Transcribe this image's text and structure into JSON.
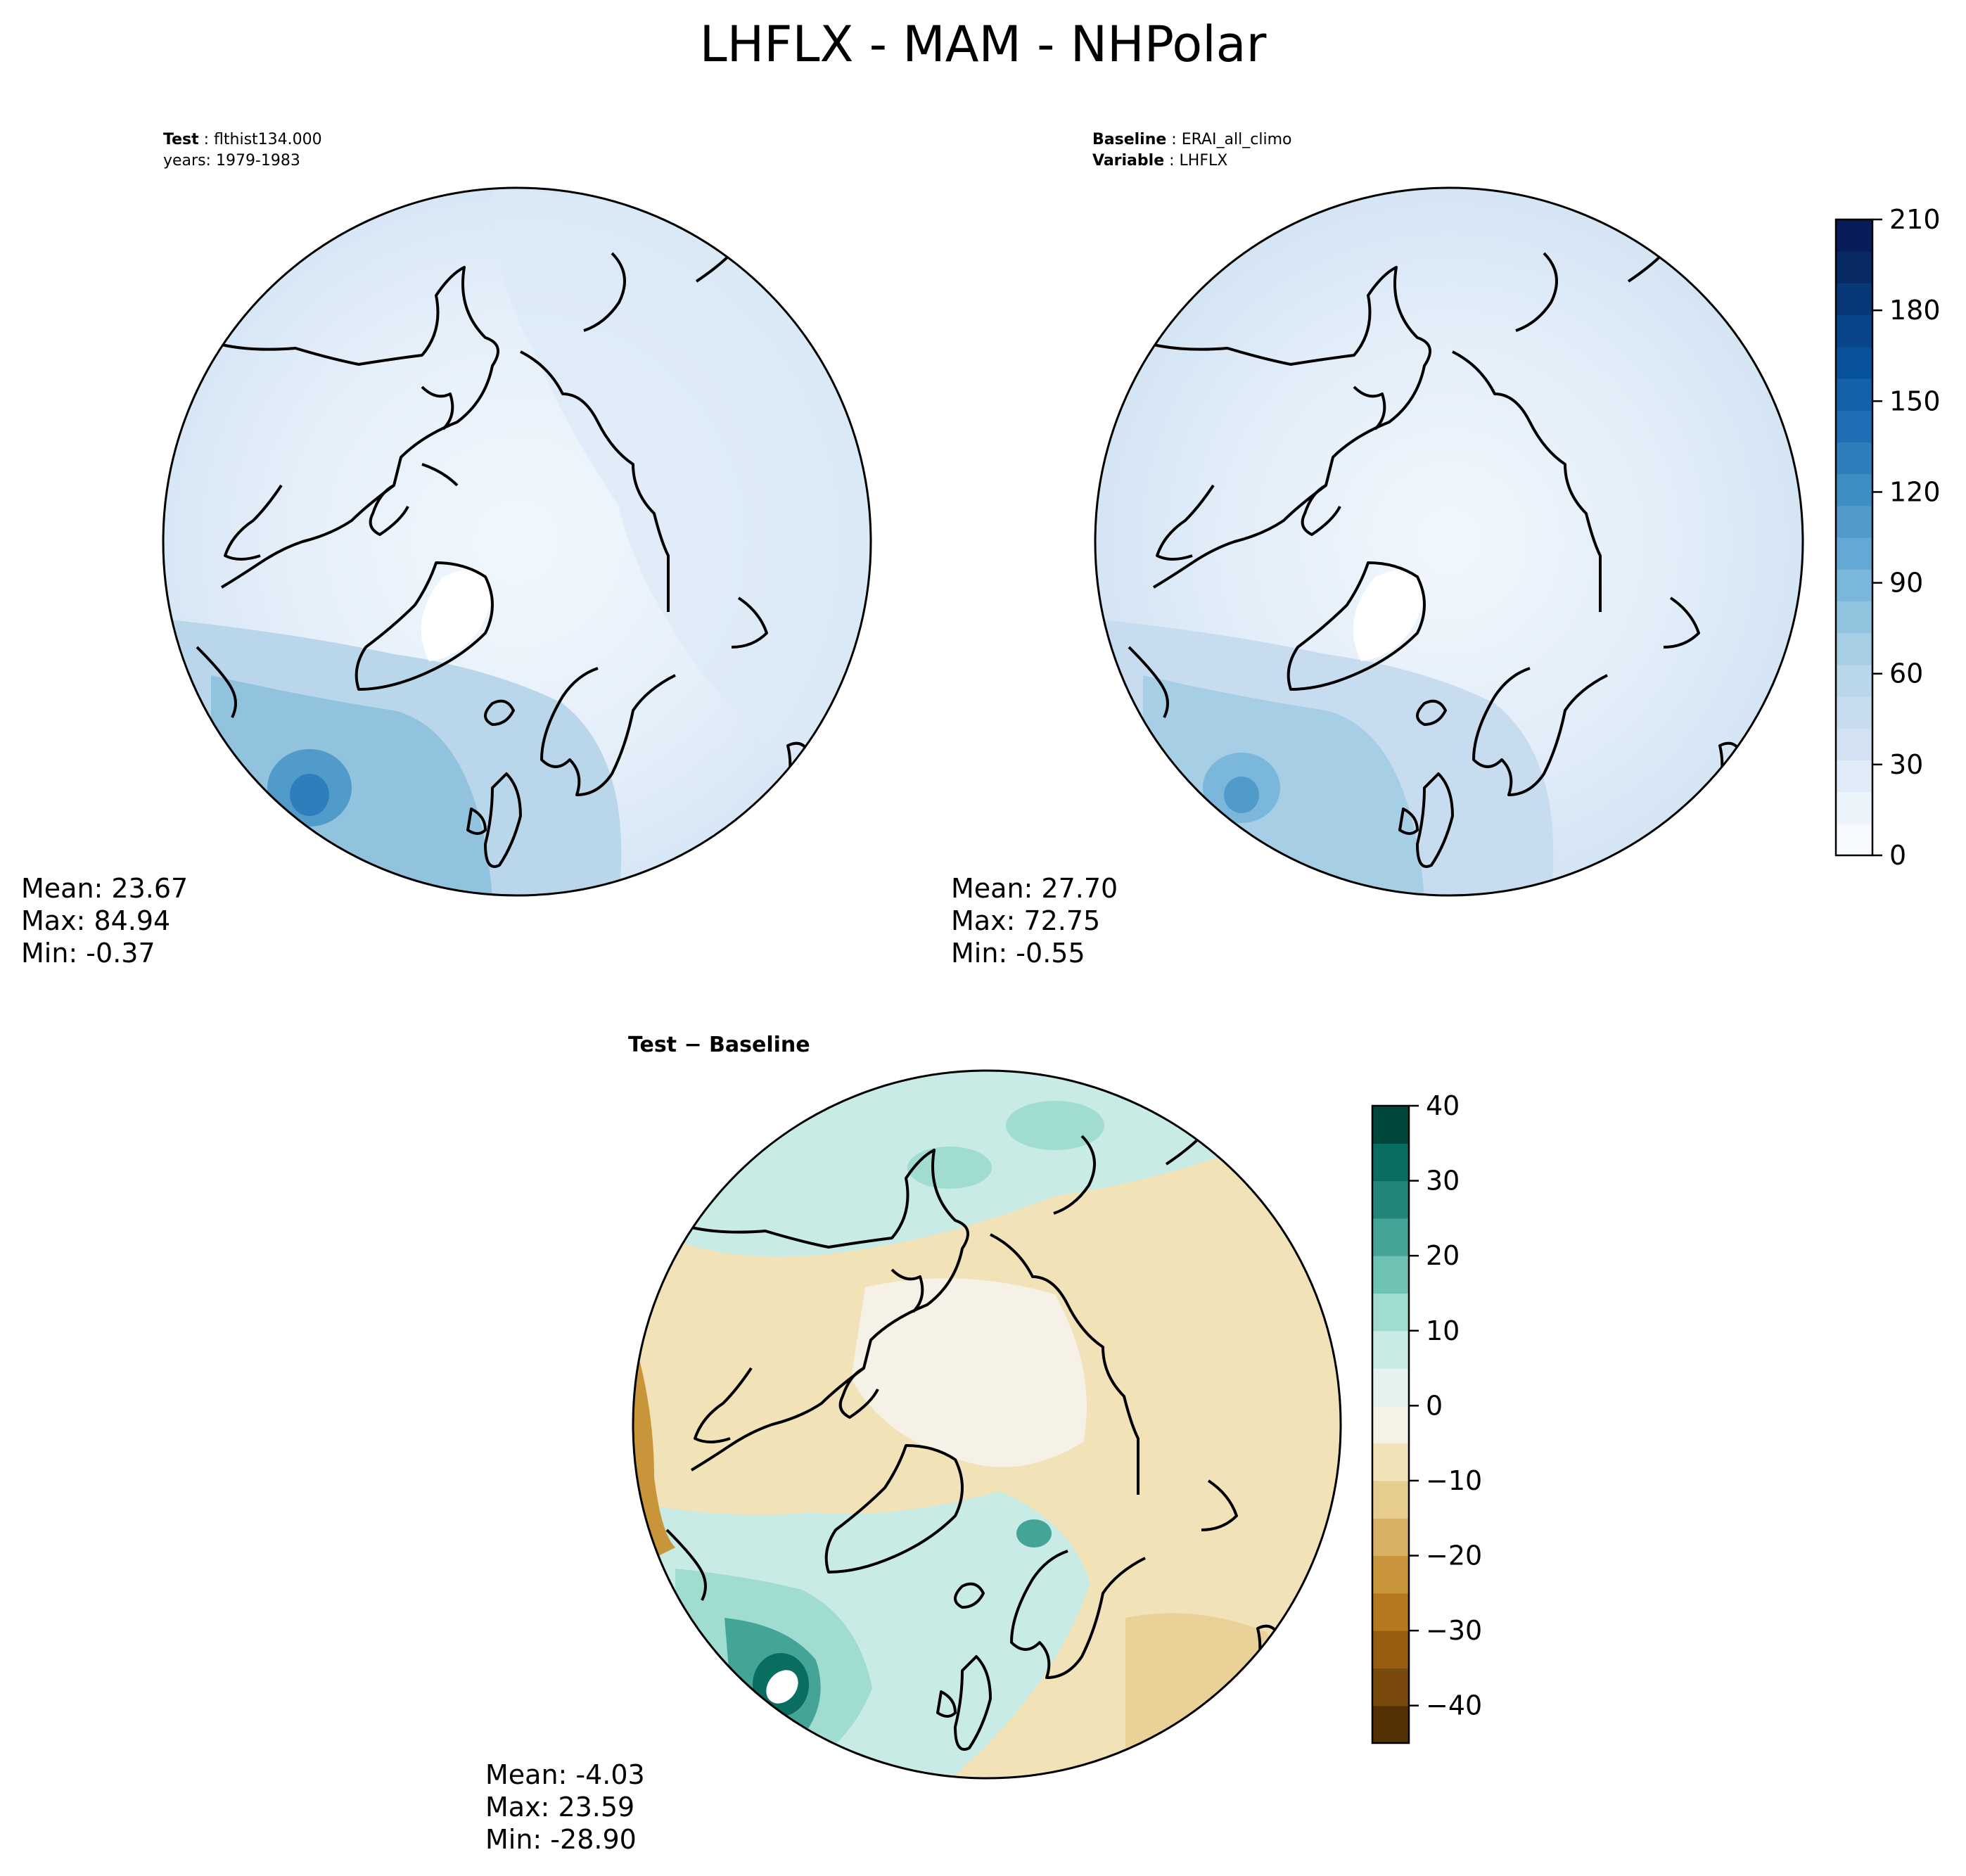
{
  "title": "LHFLX - MAM - NHPolar",
  "panels": {
    "test": {
      "label": "Test",
      "case": "flthist134.000",
      "years": "years: 1979-1983",
      "stats": {
        "mean": "Mean: 23.67",
        "max": "Max: 84.94",
        "min": "Min: -0.37"
      }
    },
    "baseline": {
      "label": "Baseline",
      "case": "ERAI_all_climo",
      "variable_label": "Variable",
      "variable": "LHFLX",
      "stats": {
        "mean": "Mean: 27.70",
        "max": "Max: 72.75",
        "min": "Min: -0.55"
      }
    },
    "diff": {
      "label": "Test − Baseline",
      "stats": {
        "mean": "Mean: -4.03",
        "max": "Max: 23.59",
        "min": "Min: -28.90"
      }
    }
  },
  "chart_data": [
    {
      "type": "heatmap",
      "projection": "north-polar-stereographic",
      "panel": "test",
      "colormap": "Blues",
      "colorbar": {
        "range": [
          0,
          210
        ],
        "ticks": [
          0,
          30,
          60,
          90,
          120,
          150,
          180,
          210
        ],
        "levels": 21,
        "colors": [
          "#f7fbff",
          "#ebf3fb",
          "#dfecf7",
          "#d3e3f3",
          "#c8dcf0",
          "#b9d6ea",
          "#a6cee4",
          "#91c3de",
          "#7ab7da",
          "#64a9d3",
          "#519bcb",
          "#3e8ec4",
          "#2e7ebc",
          "#1f6eb3",
          "#1361a9",
          "#08529c",
          "#08458a",
          "#083877",
          "#082b66",
          "#081d58"
        ]
      },
      "stats": {
        "mean": 23.67,
        "max": 84.94,
        "min": -0.37
      }
    },
    {
      "type": "heatmap",
      "projection": "north-polar-stereographic",
      "panel": "baseline",
      "colormap": "Blues",
      "colorbar": {
        "range": [
          0,
          210
        ],
        "ticks": [
          0,
          30,
          60,
          90,
          120,
          150,
          180,
          210
        ]
      },
      "stats": {
        "mean": 27.7,
        "max": 72.75,
        "min": -0.55
      }
    },
    {
      "type": "heatmap",
      "projection": "north-polar-stereographic",
      "panel": "diff",
      "colormap": "BrBG",
      "colorbar": {
        "range": [
          -45,
          40
        ],
        "ticks": [
          -40,
          -30,
          -20,
          -10,
          0,
          10,
          20,
          30,
          40
        ],
        "tick_labels": [
          "−40",
          "−30",
          "−20",
          "−10",
          "0",
          "10",
          "20",
          "30",
          "40"
        ],
        "levels": [
          -45,
          -40,
          -35,
          -30,
          -25,
          -20,
          -15,
          -10,
          -5,
          0,
          5,
          10,
          15,
          20,
          25,
          30,
          35,
          40
        ],
        "colors": [
          "#543005",
          "#7a4a0d",
          "#985d10",
          "#b5781e",
          "#c8953b",
          "#d8b165",
          "#e6cd8e",
          "#f2e2b8",
          "#f5f1e6",
          "#e4f2f0",
          "#c8ebe5",
          "#a0dcd0",
          "#6fc3b4",
          "#44a597",
          "#22867a",
          "#096d60",
          "#01473c"
        ]
      },
      "stats": {
        "mean": -4.03,
        "max": 23.59,
        "min": -28.9
      }
    }
  ]
}
